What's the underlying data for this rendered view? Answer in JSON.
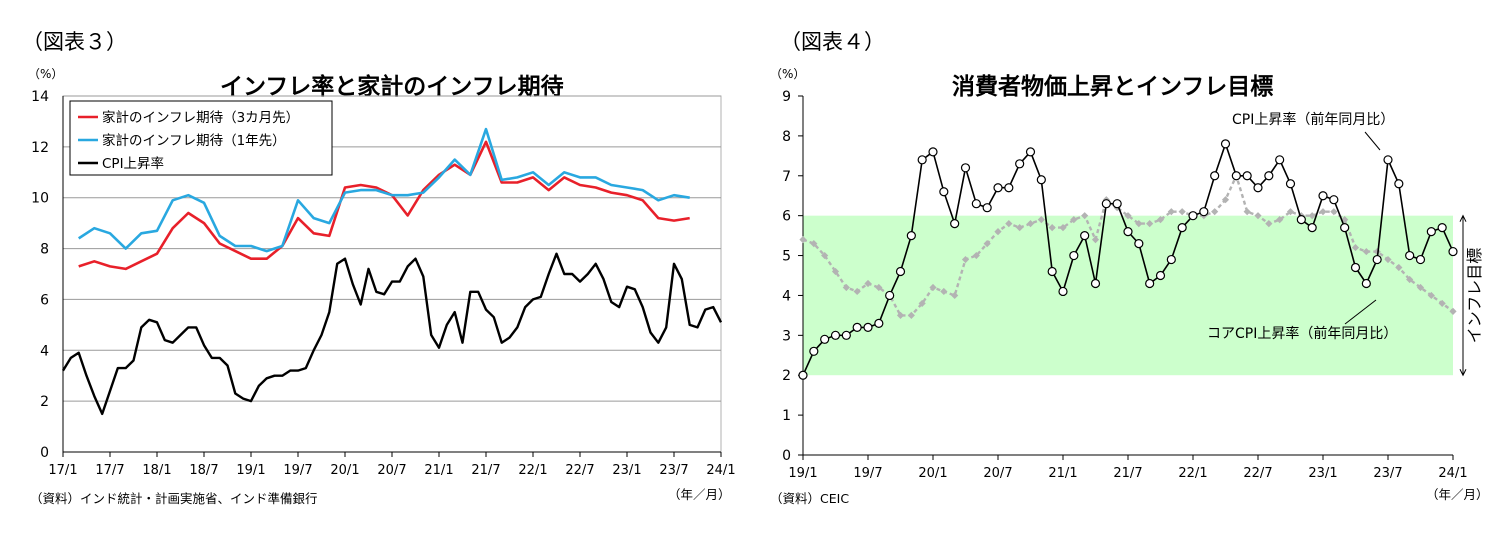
{
  "figure3": {
    "label": "（図表３）",
    "title": "インフレ率と家計のインフレ期待",
    "unit": "（%）",
    "source": "（資料）インド統計・計画実施省、インド準備銀行",
    "xunit": "（年／月）"
  },
  "figure4": {
    "label": "（図表４）",
    "title": "消費者物価上昇とインフレ目標",
    "unit": "（%）",
    "source": "（資料）CEIC",
    "xunit": "（年／月）",
    "annot_cpi": "CPI上昇率（前年同月比）",
    "annot_core": "コアCPI上昇率（前年同月比）",
    "annot_target": "インフレ目標"
  },
  "chart_data": [
    {
      "type": "line",
      "title": "インフレ率と家計のインフレ期待",
      "ylabel": "（%）",
      "ylim": [
        0,
        14
      ],
      "yticks": [
        0,
        2,
        4,
        6,
        8,
        10,
        12,
        14
      ],
      "xtick_labels": [
        "17/1",
        "17/7",
        "18/1",
        "18/7",
        "19/1",
        "19/7",
        "20/1",
        "20/7",
        "21/1",
        "21/7",
        "22/1",
        "22/7",
        "23/1",
        "23/7",
        "24/1"
      ],
      "grid": true,
      "legend": "top-left",
      "series": [
        {
          "name": "家計のインフレ期待（3カ月先）",
          "color": "#e8202a",
          "values": [
            7.3,
            7.5,
            7.3,
            7.2,
            7.5,
            7.8,
            8.8,
            9.4,
            9.0,
            8.2,
            7.9,
            7.6,
            7.6,
            8.1,
            9.2,
            8.6,
            8.5,
            10.4,
            10.5,
            10.4,
            10.1,
            9.3,
            10.3,
            10.9,
            11.3,
            10.9,
            12.2,
            10.6,
            10.6,
            10.8,
            10.3,
            10.8,
            10.5,
            10.4,
            10.2,
            10.1,
            9.9,
            9.2,
            9.1,
            9.2
          ]
        },
        {
          "name": "家計のインフレ期待（1年先）",
          "color": "#29a8e0",
          "values": [
            8.4,
            8.8,
            8.6,
            8.0,
            8.6,
            8.7,
            9.9,
            10.1,
            9.8,
            8.5,
            8.1,
            8.1,
            7.9,
            8.1,
            9.9,
            9.2,
            9.0,
            10.2,
            10.3,
            10.3,
            10.1,
            10.1,
            10.2,
            10.8,
            11.5,
            10.9,
            12.7,
            10.7,
            10.8,
            11.0,
            10.5,
            11.0,
            10.8,
            10.8,
            10.5,
            10.4,
            10.3,
            9.9,
            10.1,
            10.0
          ]
        },
        {
          "name": "CPI上昇率",
          "color": "#000000",
          "x_monthly_from": "2017/1",
          "values": [
            3.2,
            3.7,
            3.9,
            3.0,
            2.2,
            1.5,
            2.4,
            3.3,
            3.3,
            3.6,
            4.9,
            5.2,
            5.1,
            4.4,
            4.3,
            4.6,
            4.9,
            4.9,
            4.2,
            3.7,
            3.7,
            3.4,
            2.3,
            2.1,
            2.0,
            2.6,
            2.9,
            3.0,
            3.0,
            3.2,
            3.2,
            3.3,
            4.0,
            4.6,
            5.5,
            7.4,
            7.6,
            6.6,
            5.8,
            7.2,
            6.3,
            6.2,
            6.7,
            6.7,
            7.3,
            7.6,
            6.9,
            4.6,
            4.1,
            5.0,
            5.5,
            4.3,
            6.3,
            6.3,
            5.6,
            5.3,
            4.3,
            4.5,
            4.9,
            5.7,
            6.0,
            6.1,
            7.0,
            7.8,
            7.0,
            7.0,
            6.7,
            7.0,
            7.4,
            6.8,
            5.9,
            5.7,
            6.5,
            6.4,
            5.7,
            4.7,
            4.3,
            4.9,
            7.4,
            6.8,
            5.0,
            4.9,
            5.6,
            5.7,
            5.1
          ]
        }
      ]
    },
    {
      "type": "line",
      "title": "消費者物価上昇とインフレ目標",
      "ylabel": "（%）",
      "ylim": [
        0,
        9
      ],
      "yticks": [
        0,
        1,
        2,
        3,
        4,
        5,
        6,
        7,
        8,
        9
      ],
      "xtick_labels": [
        "19/1",
        "19/7",
        "20/1",
        "20/7",
        "21/1",
        "21/7",
        "22/1",
        "22/7",
        "23/1",
        "23/7",
        "24/1"
      ],
      "grid": false,
      "target_band": [
        2,
        6
      ],
      "series": [
        {
          "name": "CPI上昇率（前年同月比）",
          "color": "#000000",
          "x_monthly_from": "2019/1",
          "values": [
            2.0,
            2.6,
            2.9,
            3.0,
            3.0,
            3.2,
            3.2,
            3.3,
            4.0,
            4.6,
            5.5,
            7.4,
            7.6,
            6.6,
            5.8,
            7.2,
            6.3,
            6.2,
            6.7,
            6.7,
            7.3,
            7.6,
            6.9,
            4.6,
            4.1,
            5.0,
            5.5,
            4.3,
            6.3,
            6.3,
            5.6,
            5.3,
            4.3,
            4.5,
            4.9,
            5.7,
            6.0,
            6.1,
            7.0,
            7.8,
            7.0,
            7.0,
            6.7,
            7.0,
            7.4,
            6.8,
            5.9,
            5.7,
            6.5,
            6.4,
            5.7,
            4.7,
            4.3,
            4.9,
            7.4,
            6.8,
            5.0,
            4.9,
            5.6,
            5.7,
            5.1
          ]
        },
        {
          "name": "コアCPI上昇率（前年同月比）",
          "color": "#b3b3b3",
          "x_monthly_from": "2019/1",
          "values": [
            5.4,
            5.3,
            5.0,
            4.6,
            4.2,
            4.1,
            4.3,
            4.2,
            4.0,
            3.5,
            3.5,
            3.8,
            4.2,
            4.1,
            4.0,
            4.9,
            5.0,
            5.3,
            5.6,
            5.8,
            5.7,
            5.8,
            5.9,
            5.7,
            5.7,
            5.9,
            6.0,
            5.4,
            6.4,
            6.2,
            6.0,
            5.8,
            5.8,
            5.9,
            6.1,
            6.1,
            6.0,
            6.0,
            6.1,
            6.4,
            7.0,
            6.1,
            6.0,
            5.8,
            5.9,
            6.1,
            6.0,
            6.0,
            6.1,
            6.1,
            5.9,
            5.2,
            5.1,
            5.1,
            4.9,
            4.7,
            4.4,
            4.2,
            4.0,
            3.8,
            3.6
          ]
        }
      ]
    }
  ]
}
